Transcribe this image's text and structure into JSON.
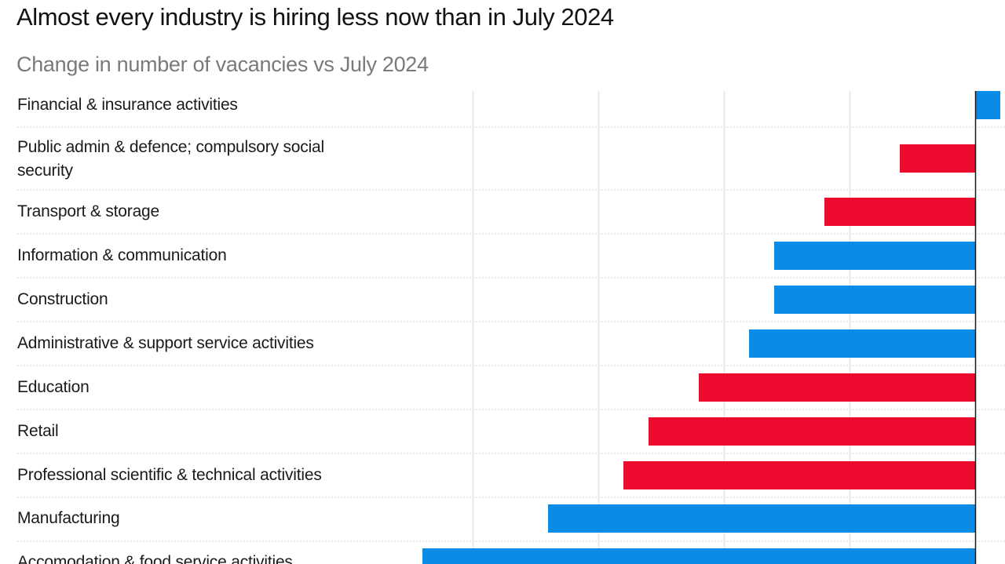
{
  "chart_data": {
    "type": "bar",
    "orientation": "horizontal",
    "title": "Almost every industry is hiring less now than in July 2024",
    "subtitle": "Change in number of vacancies vs July 2024",
    "xlabel": "",
    "ylabel": "",
    "xlim": [
      -22000,
      1000
    ],
    "grid": true,
    "series_colors": {
      "blue": "#0a8ce6",
      "red": "#ec0a2e"
    },
    "categories": [
      "Financial & insurance activities",
      "Public admin & defence; compulsory social security",
      "Transport & storage",
      "Information & communication",
      "Construction",
      "Administrative & support service activities",
      "Education",
      "Retail",
      "Professional scientific & technical activities",
      "Manufacturing",
      "Accomodation & food service activities"
    ],
    "label_lines": [
      [
        "Financial & insurance activities"
      ],
      [
        "Public admin & defence; compulsory social",
        "security"
      ],
      [
        "Transport & storage"
      ],
      [
        "Information & communication"
      ],
      [
        "Construction"
      ],
      [
        "Administrative & support service activities"
      ],
      [
        "Education"
      ],
      [
        "Retail"
      ],
      [
        "Professional scientific & technical activities"
      ],
      [
        "Manufacturing"
      ],
      [
        "Accomodation & food service activities"
      ]
    ],
    "values": [
      1000,
      -3000,
      -6000,
      -8000,
      -8000,
      -9000,
      -11000,
      -13000,
      -14000,
      -17000,
      -22000
    ],
    "colors": [
      "blue",
      "red",
      "red",
      "blue",
      "blue",
      "blue",
      "red",
      "red",
      "red",
      "blue",
      "blue"
    ]
  }
}
